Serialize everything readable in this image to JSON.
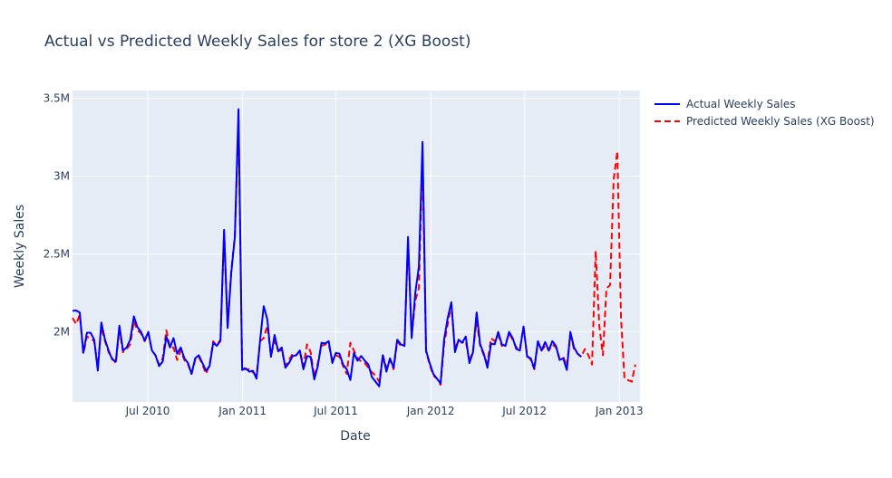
{
  "chart_data": {
    "type": "line",
    "title": "Actual vs Predicted Weekly Sales for store 2 (XG Boost)",
    "xlabel": "Date",
    "ylabel": "Weekly Sales",
    "x_start": "2010-02-05",
    "x_interval_days": 7,
    "xlim": [
      "2010-02-05",
      "2013-02-10"
    ],
    "ylim": [
      1550000,
      3550000
    ],
    "x_ticks": [
      {
        "date": "2010-07-01",
        "label": "Jul 2010"
      },
      {
        "date": "2011-01-01",
        "label": "Jan 2011"
      },
      {
        "date": "2011-07-01",
        "label": "Jul 2011"
      },
      {
        "date": "2012-01-01",
        "label": "Jan 2012"
      },
      {
        "date": "2012-07-01",
        "label": "Jul 2012"
      },
      {
        "date": "2013-01-01",
        "label": "Jan 2013"
      }
    ],
    "y_ticks": [
      {
        "value": 2000000,
        "label": "2M"
      },
      {
        "value": 2500000,
        "label": "2.5M"
      },
      {
        "value": 3000000,
        "label": "3M"
      },
      {
        "value": 3500000,
        "label": "3.5M"
      }
    ],
    "grid": true,
    "legend_position": "top-right",
    "series": [
      {
        "name": "Actual Weekly Sales",
        "color": "#0000ff",
        "dash": "solid",
        "values": [
          2136000,
          2137000,
          2124000,
          1866000,
          1995000,
          1995000,
          1950000,
          1751000,
          2060000,
          1950000,
          1880000,
          1823000,
          1810000,
          2040000,
          1880000,
          1900000,
          1950000,
          2100000,
          2030000,
          2000000,
          1945000,
          2000000,
          1880000,
          1850000,
          1780000,
          1810000,
          1970000,
          1900000,
          1960000,
          1860000,
          1900000,
          1830000,
          1800000,
          1730000,
          1830000,
          1850000,
          1800000,
          1750000,
          1780000,
          1930000,
          1910000,
          1950000,
          2655000,
          2025000,
          2380000,
          2610000,
          3430000,
          1755000,
          1765000,
          1745000,
          1750000,
          1700000,
          1950000,
          2165000,
          2080000,
          1840000,
          1980000,
          1875000,
          1900000,
          1770000,
          1800000,
          1845000,
          1850000,
          1880000,
          1760000,
          1845000,
          1840000,
          1695000,
          1780000,
          1930000,
          1925000,
          1940000,
          1800000,
          1865000,
          1860000,
          1790000,
          1760000,
          1690000,
          1865000,
          1815000,
          1845000,
          1815000,
          1790000,
          1710000,
          1680000,
          1650000,
          1850000,
          1745000,
          1830000,
          1770000,
          1950000,
          1920000,
          1910000,
          2610000,
          1960000,
          2250000,
          2420000,
          3220000,
          1880000,
          1800000,
          1730000,
          1700000,
          1670000,
          1950000,
          2090000,
          2190000,
          1870000,
          1950000,
          1930000,
          1970000,
          1800000,
          1870000,
          2125000,
          1920000,
          1860000,
          1770000,
          1925000,
          1920000,
          2000000,
          1920000,
          1910000,
          2000000,
          1960000,
          1890000,
          1880000,
          2035000,
          1840000,
          1830000,
          1765000,
          1940000,
          1880000,
          1935000,
          1880000,
          1940000,
          1910000,
          1820000,
          1830000,
          1755000,
          2000000,
          1900000,
          1860000,
          1840000
        ],
        "show_through": "2012-10-26"
      },
      {
        "name": "Predicted Weekly Sales (XG Boost)",
        "color": "#ff0000",
        "dash": "dash",
        "values": [
          2090000,
          2050000,
          2110000,
          1860000,
          1970000,
          1960000,
          1940000,
          1780000,
          2030000,
          1940000,
          1870000,
          1830000,
          1800000,
          2020000,
          1870000,
          1890000,
          1920000,
          2070000,
          2010000,
          1990000,
          1940000,
          1990000,
          1880000,
          1850000,
          1790000,
          1830000,
          2010000,
          1900000,
          1900000,
          1820000,
          1880000,
          1820000,
          1790000,
          1730000,
          1820000,
          1840000,
          1790000,
          1730000,
          1790000,
          1940000,
          1910000,
          1940000,
          2640000,
          2030000,
          2390000,
          2620000,
          3370000,
          1780000,
          1760000,
          1760000,
          1740000,
          1720000,
          1940000,
          1960000,
          2040000,
          1850000,
          1940000,
          1880000,
          1880000,
          1780000,
          1820000,
          1860000,
          1850000,
          1880000,
          1780000,
          1920000,
          1870000,
          1710000,
          1800000,
          1910000,
          1920000,
          1920000,
          1820000,
          1850000,
          1840000,
          1780000,
          1730000,
          1930000,
          1880000,
          1830000,
          1810000,
          1800000,
          1770000,
          1740000,
          1720000,
          1680000,
          1850000,
          1770000,
          1820000,
          1760000,
          1940000,
          1910000,
          1920000,
          2590000,
          1970000,
          2200000,
          2280000,
          3140000,
          1870000,
          1790000,
          1720000,
          1700000,
          1660000,
          1920000,
          2050000,
          2180000,
          1890000,
          1950000,
          1930000,
          1940000,
          1810000,
          1880000,
          2070000,
          1910000,
          1850000,
          1800000,
          1960000,
          1940000,
          1980000,
          1910000,
          1920000,
          1990000,
          1950000,
          1900000,
          1890000,
          2030000,
          1850000,
          1820000,
          1760000,
          1930000,
          1880000,
          1910000,
          1880000,
          1920000,
          1900000,
          1830000,
          1840000,
          1780000,
          1980000,
          1890000,
          1860000,
          1840000,
          1890000,
          1850000,
          1790000,
          2520000,
          2040000,
          1850000,
          2280000,
          2300000,
          2980000,
          3160000,
          2100000,
          1700000,
          1690000,
          1680000,
          1790000
        ]
      }
    ]
  }
}
